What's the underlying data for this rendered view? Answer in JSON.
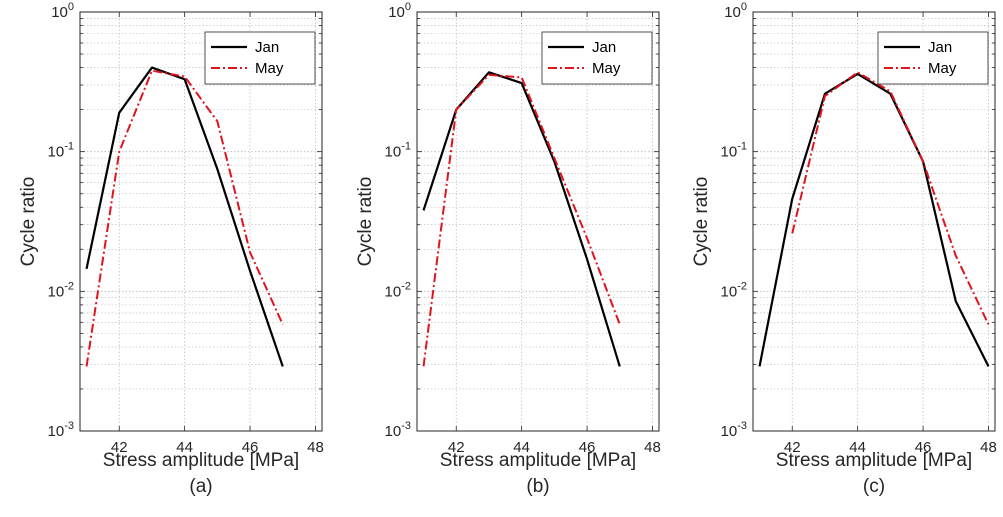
{
  "colors": {
    "jan": "#000000",
    "may": "#e0141e",
    "grid": "#b8b8b8",
    "axis": "#262626"
  },
  "chart_data": [
    {
      "type": "line",
      "panel_label": "(a)",
      "xlabel": "Stress amplitude [MPa]",
      "ylabel": "Cycle ratio",
      "xlim": [
        40.8,
        48.2
      ],
      "ylim": [
        0.001,
        1
      ],
      "yscale": "log",
      "xticks": [
        42,
        44,
        46,
        48
      ],
      "yticks": [
        {
          "value": 0.001,
          "base": "10",
          "exp": "-3"
        },
        {
          "value": 0.01,
          "base": "10",
          "exp": "-2"
        },
        {
          "value": 0.1,
          "base": "10",
          "exp": "-1"
        },
        {
          "value": 1,
          "base": "10",
          "exp": "0"
        }
      ],
      "grid": true,
      "legend": "top-right",
      "series": [
        {
          "name": "Jan",
          "style": "solid",
          "x": [
            41,
            42,
            43,
            44,
            45,
            46,
            47
          ],
          "y": [
            0.0145,
            0.19,
            0.4,
            0.33,
            0.075,
            0.014,
            0.0029
          ]
        },
        {
          "name": "May",
          "style": "dashdot",
          "x": [
            41,
            42,
            43,
            44,
            45,
            46,
            47
          ],
          "y": [
            0.0029,
            0.1,
            0.38,
            0.345,
            0.165,
            0.019,
            0.0058
          ]
        }
      ]
    },
    {
      "type": "line",
      "panel_label": "(b)",
      "xlabel": "Stress amplitude [MPa]",
      "ylabel": "Cycle ratio",
      "xlim": [
        40.8,
        48.2
      ],
      "ylim": [
        0.001,
        1
      ],
      "yscale": "log",
      "xticks": [
        42,
        44,
        46,
        48
      ],
      "yticks": [
        {
          "value": 0.001,
          "base": "10",
          "exp": "-3"
        },
        {
          "value": 0.01,
          "base": "10",
          "exp": "-2"
        },
        {
          "value": 0.1,
          "base": "10",
          "exp": "-1"
        },
        {
          "value": 1,
          "base": "10",
          "exp": "0"
        }
      ],
      "grid": true,
      "legend": "top-right",
      "series": [
        {
          "name": "Jan",
          "style": "solid",
          "x": [
            41,
            42,
            43,
            44,
            45,
            46,
            47
          ],
          "y": [
            0.038,
            0.2,
            0.37,
            0.31,
            0.085,
            0.017,
            0.0029
          ]
        },
        {
          "name": "May",
          "style": "dashdot",
          "x": [
            41,
            42,
            43,
            44,
            45,
            46,
            47
          ],
          "y": [
            0.0029,
            0.2,
            0.355,
            0.34,
            0.09,
            0.024,
            0.0058
          ]
        }
      ]
    },
    {
      "type": "line",
      "panel_label": "(c)",
      "xlabel": "Stress amplitude [MPa]",
      "ylabel": "Cycle ratio",
      "xlim": [
        40.8,
        48.2
      ],
      "ylim": [
        0.001,
        1
      ],
      "yscale": "log",
      "xticks": [
        42,
        44,
        46,
        48
      ],
      "yticks": [
        {
          "value": 0.001,
          "base": "10",
          "exp": "-3"
        },
        {
          "value": 0.01,
          "base": "10",
          "exp": "-2"
        },
        {
          "value": 0.1,
          "base": "10",
          "exp": "-1"
        },
        {
          "value": 1,
          "base": "10",
          "exp": "0"
        }
      ],
      "grid": true,
      "legend": "top-right",
      "series": [
        {
          "name": "Jan",
          "style": "solid",
          "x": [
            41,
            42,
            43,
            44,
            45,
            46,
            47,
            48
          ],
          "y": [
            0.0029,
            0.046,
            0.26,
            0.36,
            0.26,
            0.085,
            0.0085,
            0.0029
          ]
        },
        {
          "name": "May",
          "style": "dashdot",
          "x": [
            42,
            43,
            44,
            45,
            46,
            47,
            48
          ],
          "y": [
            0.026,
            0.25,
            0.37,
            0.27,
            0.085,
            0.018,
            0.0058
          ]
        }
      ]
    }
  ]
}
